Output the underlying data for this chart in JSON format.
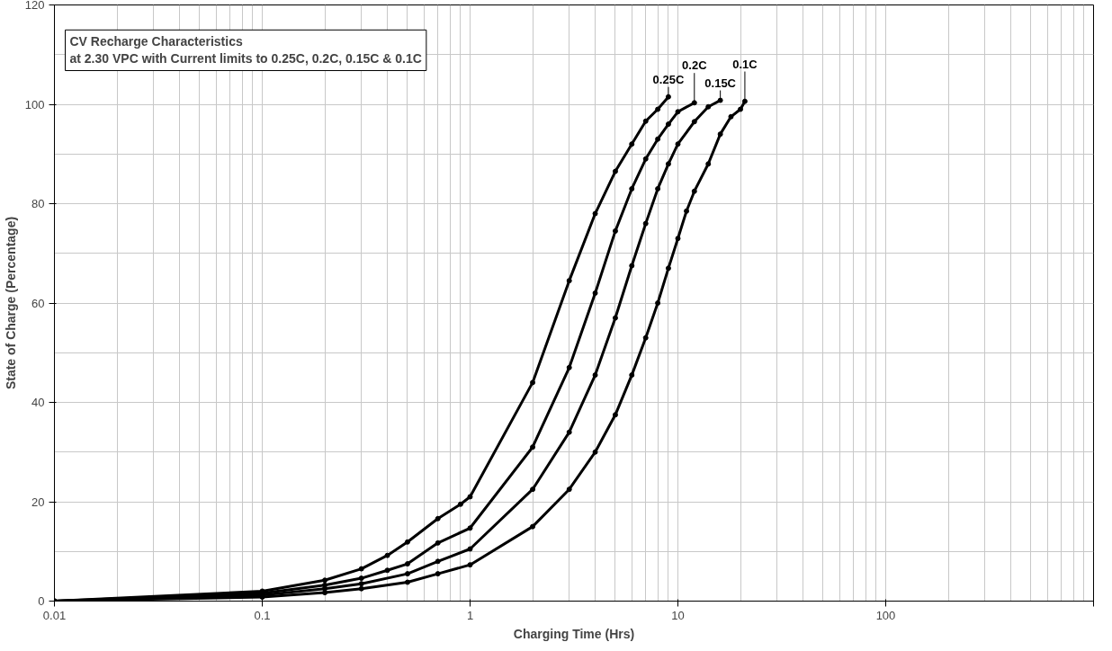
{
  "chart_data": {
    "type": "line",
    "xlabel": "Charging Time (Hrs)",
    "ylabel": "State of Charge (Percentage)",
    "log": "x",
    "xlim": [
      0.01,
      1000
    ],
    "xticks": [
      0.01,
      0.1,
      1,
      10,
      100,
      {
        "value": 1000,
        "label": null
      }
    ],
    "ylim": [
      0,
      120
    ],
    "yticks": [
      0,
      20,
      40,
      60,
      80,
      100,
      120
    ],
    "grid": true,
    "marker": "circle",
    "line_style": "solid",
    "series": [
      {
        "name": "0.25C",
        "color": "#000000",
        "x": [
          0.01,
          0.1,
          0.2,
          0.3,
          0.4,
          0.5,
          0.7,
          0.9,
          1,
          2,
          3,
          4,
          5,
          6,
          7,
          8,
          9
        ],
        "values": [
          0,
          2.0,
          4.2,
          6.5,
          9.2,
          11.9,
          16.6,
          19.5,
          21,
          44,
          64.5,
          78,
          86.5,
          92,
          96.6,
          99,
          101.5
        ]
      },
      {
        "name": "0.2C",
        "color": "#000000",
        "x": [
          0.01,
          0.1,
          0.2,
          0.3,
          0.4,
          0.5,
          0.7,
          1,
          2,
          3,
          4,
          5,
          6,
          7,
          8,
          9,
          10,
          12
        ],
        "values": [
          0,
          1.6,
          3.2,
          4.6,
          6.2,
          7.5,
          11.7,
          14.7,
          31,
          47,
          62,
          74.5,
          83,
          89,
          93,
          96,
          98.5,
          100.3
        ]
      },
      {
        "name": "0.15C",
        "color": "#000000",
        "x": [
          0.01,
          0.1,
          0.2,
          0.3,
          0.5,
          0.7,
          1,
          2,
          3,
          4,
          5,
          6,
          7,
          8,
          9,
          10,
          12,
          14,
          16
        ],
        "values": [
          0,
          1.2,
          2.5,
          3.5,
          5.5,
          8,
          10.5,
          22.5,
          34,
          45.5,
          57,
          67.5,
          76,
          83,
          88,
          92,
          96.5,
          99.5,
          100.8
        ]
      },
      {
        "name": "0.1C",
        "color": "#000000",
        "x": [
          0.01,
          0.1,
          0.2,
          0.3,
          0.5,
          0.7,
          1,
          2,
          3,
          4,
          5,
          6,
          7,
          8,
          9,
          10,
          11,
          12,
          14,
          16,
          18,
          20,
          21
        ],
        "values": [
          0,
          0.8,
          1.7,
          2.5,
          3.8,
          5.5,
          7.3,
          15,
          22.5,
          30,
          37.5,
          45.5,
          53,
          60,
          67,
          73,
          78.5,
          82.5,
          88,
          94,
          97.5,
          99,
          100.6
        ]
      }
    ],
    "annotations": [
      "CV Recharge Characteristics\nat 2.30 VPC with Current limits to 0.25C, 0.2C, 0.15C & 0.1C"
    ]
  }
}
